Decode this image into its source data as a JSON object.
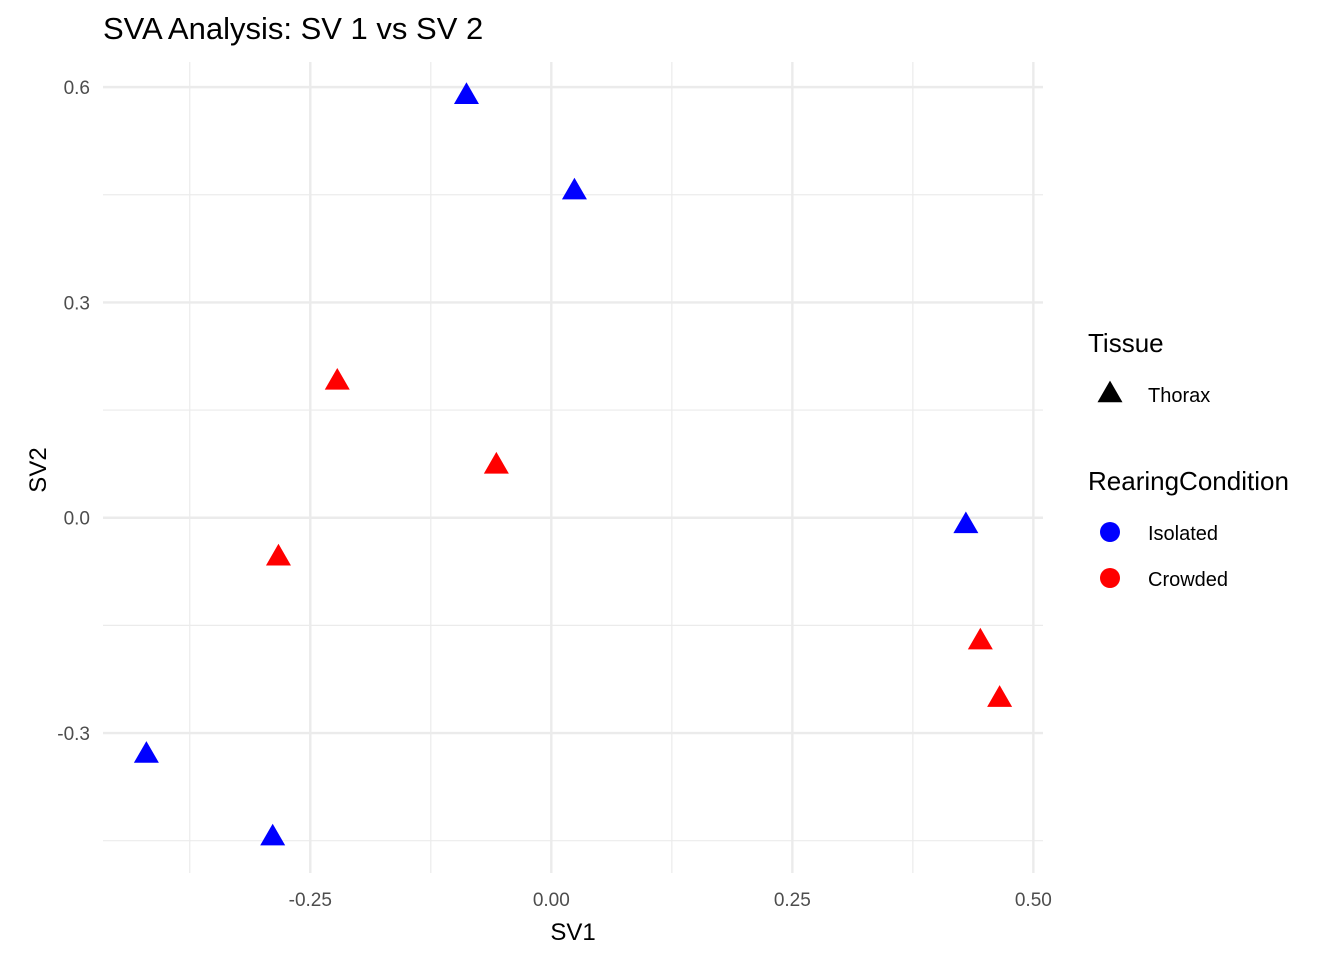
{
  "chart_data": {
    "type": "scatter",
    "title": "SVA Analysis: SV 1  vs SV 2",
    "xlabel": "SV1",
    "ylabel": "SV2",
    "xlim": [
      -0.465,
      0.51
    ],
    "ylim": [
      -0.495,
      0.635
    ],
    "x_ticks": [
      -0.25,
      0.0,
      0.25,
      0.5
    ],
    "x_tick_labels": [
      "-0.25",
      "0.00",
      "0.25",
      "0.50"
    ],
    "y_ticks": [
      -0.3,
      0.0,
      0.3,
      0.6
    ],
    "y_tick_labels": [
      "-0.3",
      "0.0",
      "0.3",
      "0.6"
    ],
    "x_minor": [
      -0.375,
      -0.125,
      0.125,
      0.375
    ],
    "y_minor": [
      -0.45,
      -0.15,
      0.15,
      0.45
    ],
    "grid": true,
    "legend_position": "right",
    "legends": [
      {
        "title": "Tissue",
        "entries": [
          {
            "label": "Thorax",
            "shape": "triangle",
            "color": "#000000"
          }
        ]
      },
      {
        "title": "RearingCondition",
        "entries": [
          {
            "label": "Isolated",
            "shape": "circle",
            "color": "#0000FF"
          },
          {
            "label": "Crowded",
            "shape": "circle",
            "color": "#FF0000"
          }
        ]
      }
    ],
    "series": [
      {
        "name": "Isolated",
        "color": "#0000FF",
        "shape": "triangle",
        "points": [
          {
            "x": -0.088,
            "y": 0.588
          },
          {
            "x": 0.024,
            "y": 0.455
          },
          {
            "x": 0.43,
            "y": -0.01
          },
          {
            "x": -0.42,
            "y": -0.33
          },
          {
            "x": -0.289,
            "y": -0.445
          }
        ]
      },
      {
        "name": "Crowded",
        "color": "#FF0000",
        "shape": "triangle",
        "points": [
          {
            "x": -0.222,
            "y": 0.19
          },
          {
            "x": -0.057,
            "y": 0.073
          },
          {
            "x": -0.283,
            "y": -0.055
          },
          {
            "x": 0.445,
            "y": -0.172
          },
          {
            "x": 0.465,
            "y": -0.252
          }
        ]
      }
    ]
  }
}
